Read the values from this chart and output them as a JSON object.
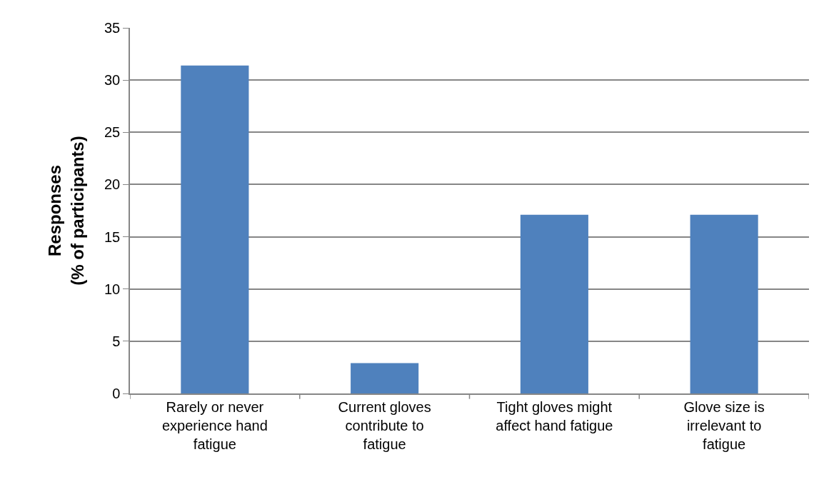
{
  "chart_data": {
    "type": "bar",
    "ylabel": "Responses\n(% of participants)",
    "categories": [
      "Rarely or never experience hand fatigue",
      "Current gloves contribute to fatigue",
      "Tight gloves might affect hand fatigue",
      "Glove size is irrelevant to fatigue"
    ],
    "values": [
      31.4,
      2.9,
      17.1,
      17.1
    ],
    "color": "#4f81bd",
    "ylim": [
      0,
      35
    ],
    "yticks": [
      0,
      5,
      10,
      15,
      20,
      25,
      30,
      35
    ],
    "grid": "y"
  }
}
